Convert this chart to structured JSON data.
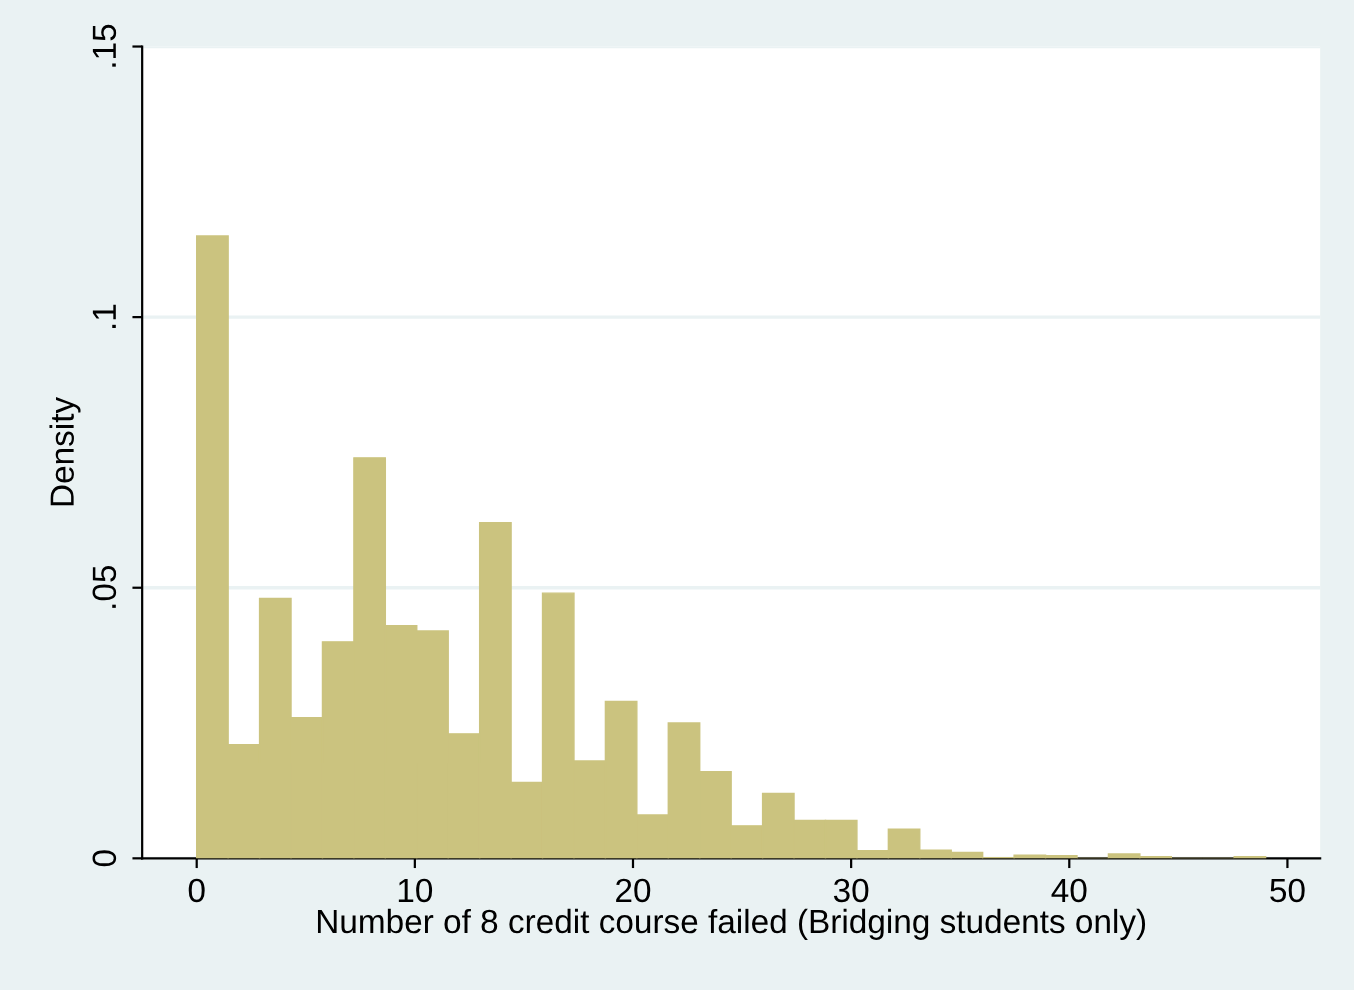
{
  "chart_data": {
    "type": "histogram",
    "xlabel": "Number of 8 credit course failed (Bridging students only)",
    "ylabel": "Density",
    "bins": [
      0,
      1.441,
      2.882,
      4.324,
      5.765,
      7.206,
      8.647,
      10.088,
      11.529,
      12.971,
      14.412,
      15.853,
      17.294,
      18.735,
      20.176,
      21.618,
      23.059,
      24.5,
      25.941,
      27.382,
      28.824,
      30.265,
      31.706,
      33.147,
      34.588,
      36.029,
      37.471,
      38.912,
      40.353,
      41.794,
      43.235,
      44.676,
      46.118,
      47.559,
      49
    ],
    "values": [
      0.115,
      0.021,
      0.048,
      0.026,
      0.04,
      0.074,
      0.043,
      0.042,
      0.023,
      0.062,
      0.014,
      0.049,
      0.018,
      0.029,
      0.008,
      0.025,
      0.016,
      0.006,
      0.012,
      0.007,
      0.007,
      0.0014,
      0.0054,
      0.0015,
      0.0011,
      0.0001,
      0.0006,
      0.0005,
      0,
      0.0008,
      0.0003,
      0,
      0,
      0.0003
    ],
    "color": "#cbc37f",
    "xlim": [
      -2.5,
      51.5
    ],
    "xticks": [
      0,
      10,
      20,
      30,
      40,
      50
    ],
    "ylim": [
      0,
      0.15
    ],
    "yticks": [
      {
        "value": 0,
        "label": "0"
      },
      {
        "value": 0.05,
        "label": ".05"
      },
      {
        "value": 0.1,
        "label": ".1"
      },
      {
        "value": 0.15,
        "label": ".15"
      }
    ],
    "grid": "y"
  }
}
